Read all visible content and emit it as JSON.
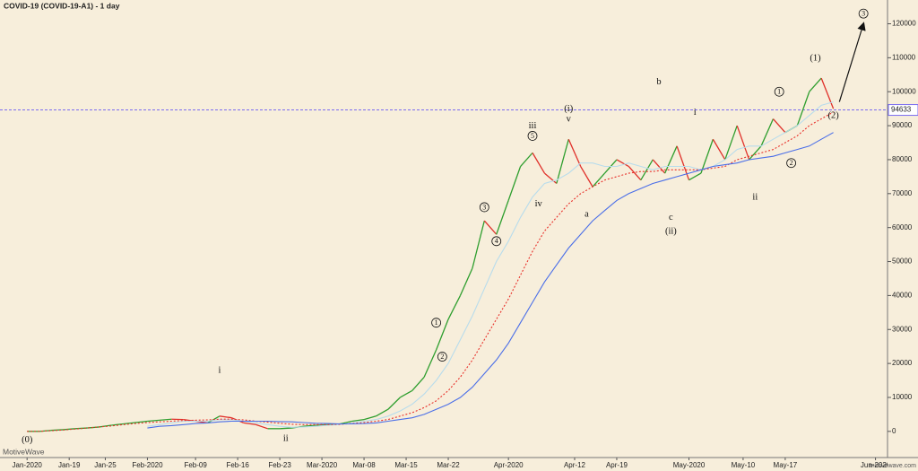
{
  "chart_data": {
    "type": "line",
    "title": "COVID-19 (COVID-19-A1) - 1 day",
    "watermark": "MotiveWave",
    "footer": "motivewave.com",
    "x": [
      0,
      2,
      4,
      6,
      8,
      10,
      12,
      14,
      16,
      18,
      20,
      22,
      24,
      26,
      28,
      30,
      32,
      34,
      36,
      38,
      40,
      42,
      44,
      46,
      48,
      50,
      52,
      54,
      56,
      58,
      60,
      62,
      64,
      66,
      68,
      70,
      72,
      74,
      76,
      78,
      80,
      82,
      84,
      86,
      88,
      90,
      92,
      94,
      96,
      98,
      100,
      102,
      104,
      106,
      108,
      110,
      112,
      114,
      116,
      118,
      120,
      122,
      124,
      126,
      128,
      130,
      132,
      134
    ],
    "series": [
      {
        "color": "#2e9e2e",
        "down_color": "#e0302a",
        "values": [
          0,
          0,
          300,
          500,
          800,
          1000,
          1300,
          1800,
          2200,
          2600,
          3000,
          3300,
          3600,
          3500,
          3000,
          2500,
          4500,
          4000,
          2500,
          2000,
          800,
          800,
          1000,
          1500,
          1800,
          2000,
          2200,
          3000,
          3500,
          4500,
          6500,
          10000,
          12000,
          16000,
          24000,
          33000,
          40000,
          48000,
          62000,
          58000,
          68000,
          78000,
          82000,
          76000,
          73000,
          86000,
          78000,
          72000,
          76000,
          80000,
          78000,
          74000,
          80000,
          76000,
          84000,
          74000,
          76000,
          86000,
          80000,
          90000,
          80000,
          84000,
          92000,
          88000,
          90000,
          100000,
          104000,
          95000
        ]
      },
      {
        "color": "#b8dcec",
        "values": [
          null,
          null,
          null,
          null,
          null,
          null,
          null,
          null,
          null,
          null,
          1500,
          2000,
          2500,
          3000,
          3000,
          3000,
          3500,
          3500,
          3000,
          2500,
          2000,
          1500,
          1200,
          1300,
          1500,
          1800,
          2000,
          2500,
          3000,
          3500,
          4500,
          6000,
          8000,
          11000,
          15000,
          20000,
          27000,
          34000,
          42000,
          50000,
          56000,
          63000,
          69000,
          73000,
          74000,
          76000,
          79000,
          79000,
          78000,
          78000,
          79000,
          78000,
          77000,
          78000,
          78000,
          78000,
          77000,
          78000,
          80000,
          83000,
          84000,
          84000,
          86000,
          88000,
          90000,
          93000,
          96000,
          97000
        ]
      },
      {
        "color": "#e8302a",
        "dashed": true,
        "values": [
          0,
          0,
          200,
          400,
          700,
          1000,
          1300,
          1600,
          2000,
          2300,
          2600,
          2800,
          3000,
          3200,
          3300,
          3400,
          3600,
          3600,
          3400,
          3000,
          2700,
          2400,
          2100,
          2000,
          2000,
          2000,
          2100,
          2300,
          2600,
          3000,
          3500,
          4500,
          5500,
          7000,
          9000,
          12000,
          16000,
          21000,
          27000,
          33000,
          39000,
          46000,
          53000,
          59000,
          63000,
          67000,
          70000,
          72000,
          74000,
          75000,
          76000,
          76500,
          76500,
          77000,
          77000,
          77000,
          77000,
          77500,
          78000,
          80000,
          81000,
          82000,
          83000,
          85000,
          87000,
          90000,
          92000,
          94000
        ]
      },
      {
        "color": "#4a6ee8",
        "values": [
          null,
          null,
          null,
          null,
          null,
          null,
          null,
          null,
          null,
          null,
          1000,
          1500,
          1700,
          2000,
          2300,
          2500,
          2800,
          3000,
          3000,
          3000,
          3000,
          2900,
          2800,
          2600,
          2400,
          2300,
          2200,
          2200,
          2300,
          2500,
          3000,
          3500,
          4000,
          5000,
          6500,
          8000,
          10000,
          13000,
          17000,
          21000,
          26000,
          32000,
          38000,
          44000,
          49000,
          54000,
          58000,
          62000,
          65000,
          68000,
          70000,
          71500,
          73000,
          74000,
          75000,
          76000,
          77000,
          78000,
          78500,
          79000,
          80000,
          80500,
          81000,
          82000,
          83000,
          84000,
          86000,
          88000
        ]
      }
    ],
    "xlim": [
      -4.5,
      143
    ],
    "xticks": [
      {
        "value": 0,
        "label": "Jan-2020"
      },
      {
        "value": 7,
        "label": "Jan-19"
      },
      {
        "value": 13,
        "label": "Jan-25"
      },
      {
        "value": 20,
        "label": "Feb-2020"
      },
      {
        "value": 28,
        "label": "Feb-09"
      },
      {
        "value": 35,
        "label": "Feb-16"
      },
      {
        "value": 42,
        "label": "Feb-23"
      },
      {
        "value": 49,
        "label": "Mar-2020"
      },
      {
        "value": 56,
        "label": "Mar-08"
      },
      {
        "value": 63,
        "label": "Mar-15"
      },
      {
        "value": 70,
        "label": "Mar-22"
      },
      {
        "value": 80,
        "label": "Apr-2020"
      },
      {
        "value": 91,
        "label": "Apr-12"
      },
      {
        "value": 98,
        "label": "Apr-19"
      },
      {
        "value": 110,
        "label": "May-2020"
      },
      {
        "value": 119,
        "label": "May-10"
      },
      {
        "value": 126,
        "label": "May-17"
      },
      {
        "value": 141,
        "label": "Jun-2020"
      }
    ],
    "ylim": [
      -7700,
      127000
    ],
    "yticks": [
      0,
      10000,
      20000,
      30000,
      40000,
      50000,
      60000,
      70000,
      80000,
      90000,
      100000,
      110000,
      120000
    ],
    "hline": {
      "value": 94633,
      "color": "#7a6cf0"
    },
    "arrow": {
      "x": [
        135,
        139
      ],
      "y": [
        97000,
        120000
      ]
    },
    "annotations": [
      {
        "text": "(0)",
        "x": 0,
        "y": -2400
      },
      {
        "text": "i",
        "x": 32,
        "y": 18000
      },
      {
        "text": "ii",
        "x": 43,
        "y": -2000
      },
      {
        "text": "1",
        "circled": true,
        "x": 68,
        "y": 32000
      },
      {
        "text": "2",
        "circled": true,
        "x": 69,
        "y": 22000
      },
      {
        "text": "3",
        "circled": true,
        "x": 76,
        "y": 66000
      },
      {
        "text": "4",
        "circled": true,
        "x": 78,
        "y": 56000
      },
      {
        "text": "5",
        "circled": true,
        "x": 84,
        "y": 87000
      },
      {
        "text": "iii",
        "x": 84,
        "y": 90000
      },
      {
        "text": "iv",
        "x": 85,
        "y": 67000
      },
      {
        "text": "(i)",
        "x": 90,
        "y": 95000
      },
      {
        "text": "v",
        "x": 90,
        "y": 92000
      },
      {
        "text": "a",
        "x": 93,
        "y": 64000
      },
      {
        "text": "b",
        "x": 105,
        "y": 103000
      },
      {
        "text": "c",
        "x": 107,
        "y": 63000
      },
      {
        "text": "(ii)",
        "x": 107,
        "y": 59000
      },
      {
        "text": "i",
        "x": 111,
        "y": 94000
      },
      {
        "text": "ii",
        "x": 121,
        "y": 69000
      },
      {
        "text": "1",
        "circled": true,
        "x": 125,
        "y": 100000
      },
      {
        "text": "2",
        "circled": true,
        "x": 127,
        "y": 79000
      },
      {
        "text": "(1)",
        "x": 131,
        "y": 110000
      },
      {
        "text": "(2)",
        "x": 134,
        "y": 93000
      },
      {
        "text": "3",
        "circled": true,
        "x": 139,
        "y": 123000
      }
    ]
  }
}
